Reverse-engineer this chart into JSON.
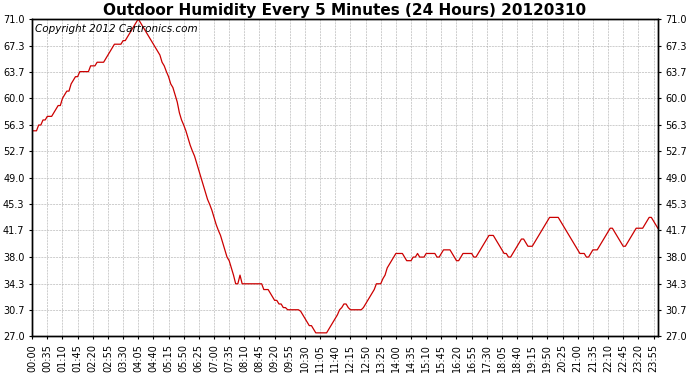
{
  "title": "Outdoor Humidity Every 5 Minutes (24 Hours) 20120310",
  "copyright_text": "Copyright 2012 Cartronics.com",
  "line_color": "#cc0000",
  "background_color": "#ffffff",
  "grid_color": "#aaaaaa",
  "ylim": [
    27.0,
    71.0
  ],
  "yticks": [
    27.0,
    30.7,
    34.3,
    38.0,
    41.7,
    45.3,
    49.0,
    52.7,
    56.3,
    60.0,
    63.7,
    67.3,
    71.0
  ],
  "humidity_data": [
    55.5,
    55.5,
    55.5,
    56.3,
    56.3,
    57.0,
    57.0,
    57.5,
    57.5,
    57.5,
    58.0,
    58.5,
    59.0,
    59.0,
    60.0,
    60.5,
    61.0,
    61.0,
    62.0,
    62.5,
    63.0,
    63.0,
    63.7,
    63.7,
    63.7,
    63.7,
    63.7,
    64.5,
    64.5,
    64.5,
    65.0,
    65.0,
    65.0,
    65.0,
    65.5,
    66.0,
    66.5,
    67.0,
    67.5,
    67.5,
    67.5,
    67.5,
    68.0,
    68.0,
    68.5,
    69.0,
    69.5,
    70.0,
    70.5,
    71.0,
    70.5,
    70.0,
    69.5,
    69.0,
    68.5,
    68.0,
    67.5,
    67.0,
    66.5,
    66.0,
    65.0,
    64.5,
    63.7,
    63.0,
    62.0,
    61.5,
    60.5,
    59.5,
    58.0,
    57.0,
    56.3,
    55.5,
    54.5,
    53.5,
    52.7,
    52.0,
    51.0,
    50.0,
    49.0,
    48.0,
    47.0,
    46.0,
    45.3,
    44.5,
    43.5,
    42.5,
    41.7,
    41.0,
    40.0,
    39.0,
    38.0,
    37.5,
    36.5,
    35.5,
    34.3,
    34.3,
    35.5,
    34.3,
    34.3,
    34.3,
    34.3,
    34.3,
    34.3,
    34.3,
    34.3,
    34.3,
    34.3,
    33.5,
    33.5,
    33.5,
    33.0,
    32.5,
    32.0,
    32.0,
    31.5,
    31.5,
    31.0,
    31.0,
    30.7,
    30.7,
    30.7,
    30.7,
    30.7,
    30.7,
    30.5,
    30.0,
    29.5,
    29.0,
    28.5,
    28.5,
    28.0,
    27.5,
    27.5,
    27.5,
    27.5,
    27.5,
    27.5,
    28.0,
    28.5,
    29.0,
    29.5,
    30.0,
    30.7,
    31.0,
    31.5,
    31.5,
    31.0,
    30.7,
    30.7,
    30.7,
    30.7,
    30.7,
    30.7,
    31.0,
    31.5,
    32.0,
    32.5,
    33.0,
    33.5,
    34.3,
    34.3,
    34.3,
    35.0,
    35.5,
    36.5,
    37.0,
    37.5,
    38.0,
    38.5,
    38.5,
    38.5,
    38.5,
    38.0,
    37.5,
    37.5,
    37.5,
    38.0,
    38.0,
    38.5,
    38.0,
    38.0,
    38.0,
    38.5,
    38.5,
    38.5,
    38.5,
    38.5,
    38.0,
    38.0,
    38.5,
    39.0,
    39.0,
    39.0,
    39.0,
    38.5,
    38.0,
    37.5,
    37.5,
    38.0,
    38.5,
    38.5,
    38.5,
    38.5,
    38.5,
    38.0,
    38.0,
    38.5,
    39.0,
    39.5,
    40.0,
    40.5,
    41.0,
    41.0,
    41.0,
    40.5,
    40.0,
    39.5,
    39.0,
    38.5,
    38.5,
    38.0,
    38.0,
    38.5,
    39.0,
    39.5,
    40.0,
    40.5,
    40.5,
    40.0,
    39.5,
    39.5,
    39.5,
    40.0,
    40.5,
    41.0,
    41.5,
    42.0,
    42.5,
    43.0,
    43.5,
    43.5,
    43.5,
    43.5,
    43.5,
    43.0,
    42.5,
    42.0,
    41.5,
    41.0,
    40.5,
    40.0,
    39.5,
    39.0,
    38.5,
    38.5,
    38.5,
    38.0,
    38.0,
    38.5,
    39.0,
    39.0,
    39.0,
    39.5,
    40.0,
    40.5,
    41.0,
    41.5,
    42.0,
    42.0,
    41.5,
    41.0,
    40.5,
    40.0,
    39.5,
    39.5,
    40.0,
    40.5,
    41.0,
    41.5,
    42.0,
    42.0,
    42.0,
    42.0,
    42.5,
    43.0,
    43.5,
    43.5,
    43.0,
    42.5,
    42.0
  ],
  "title_fontsize": 11,
  "tick_fontsize": 7,
  "copyright_fontsize": 7.5
}
